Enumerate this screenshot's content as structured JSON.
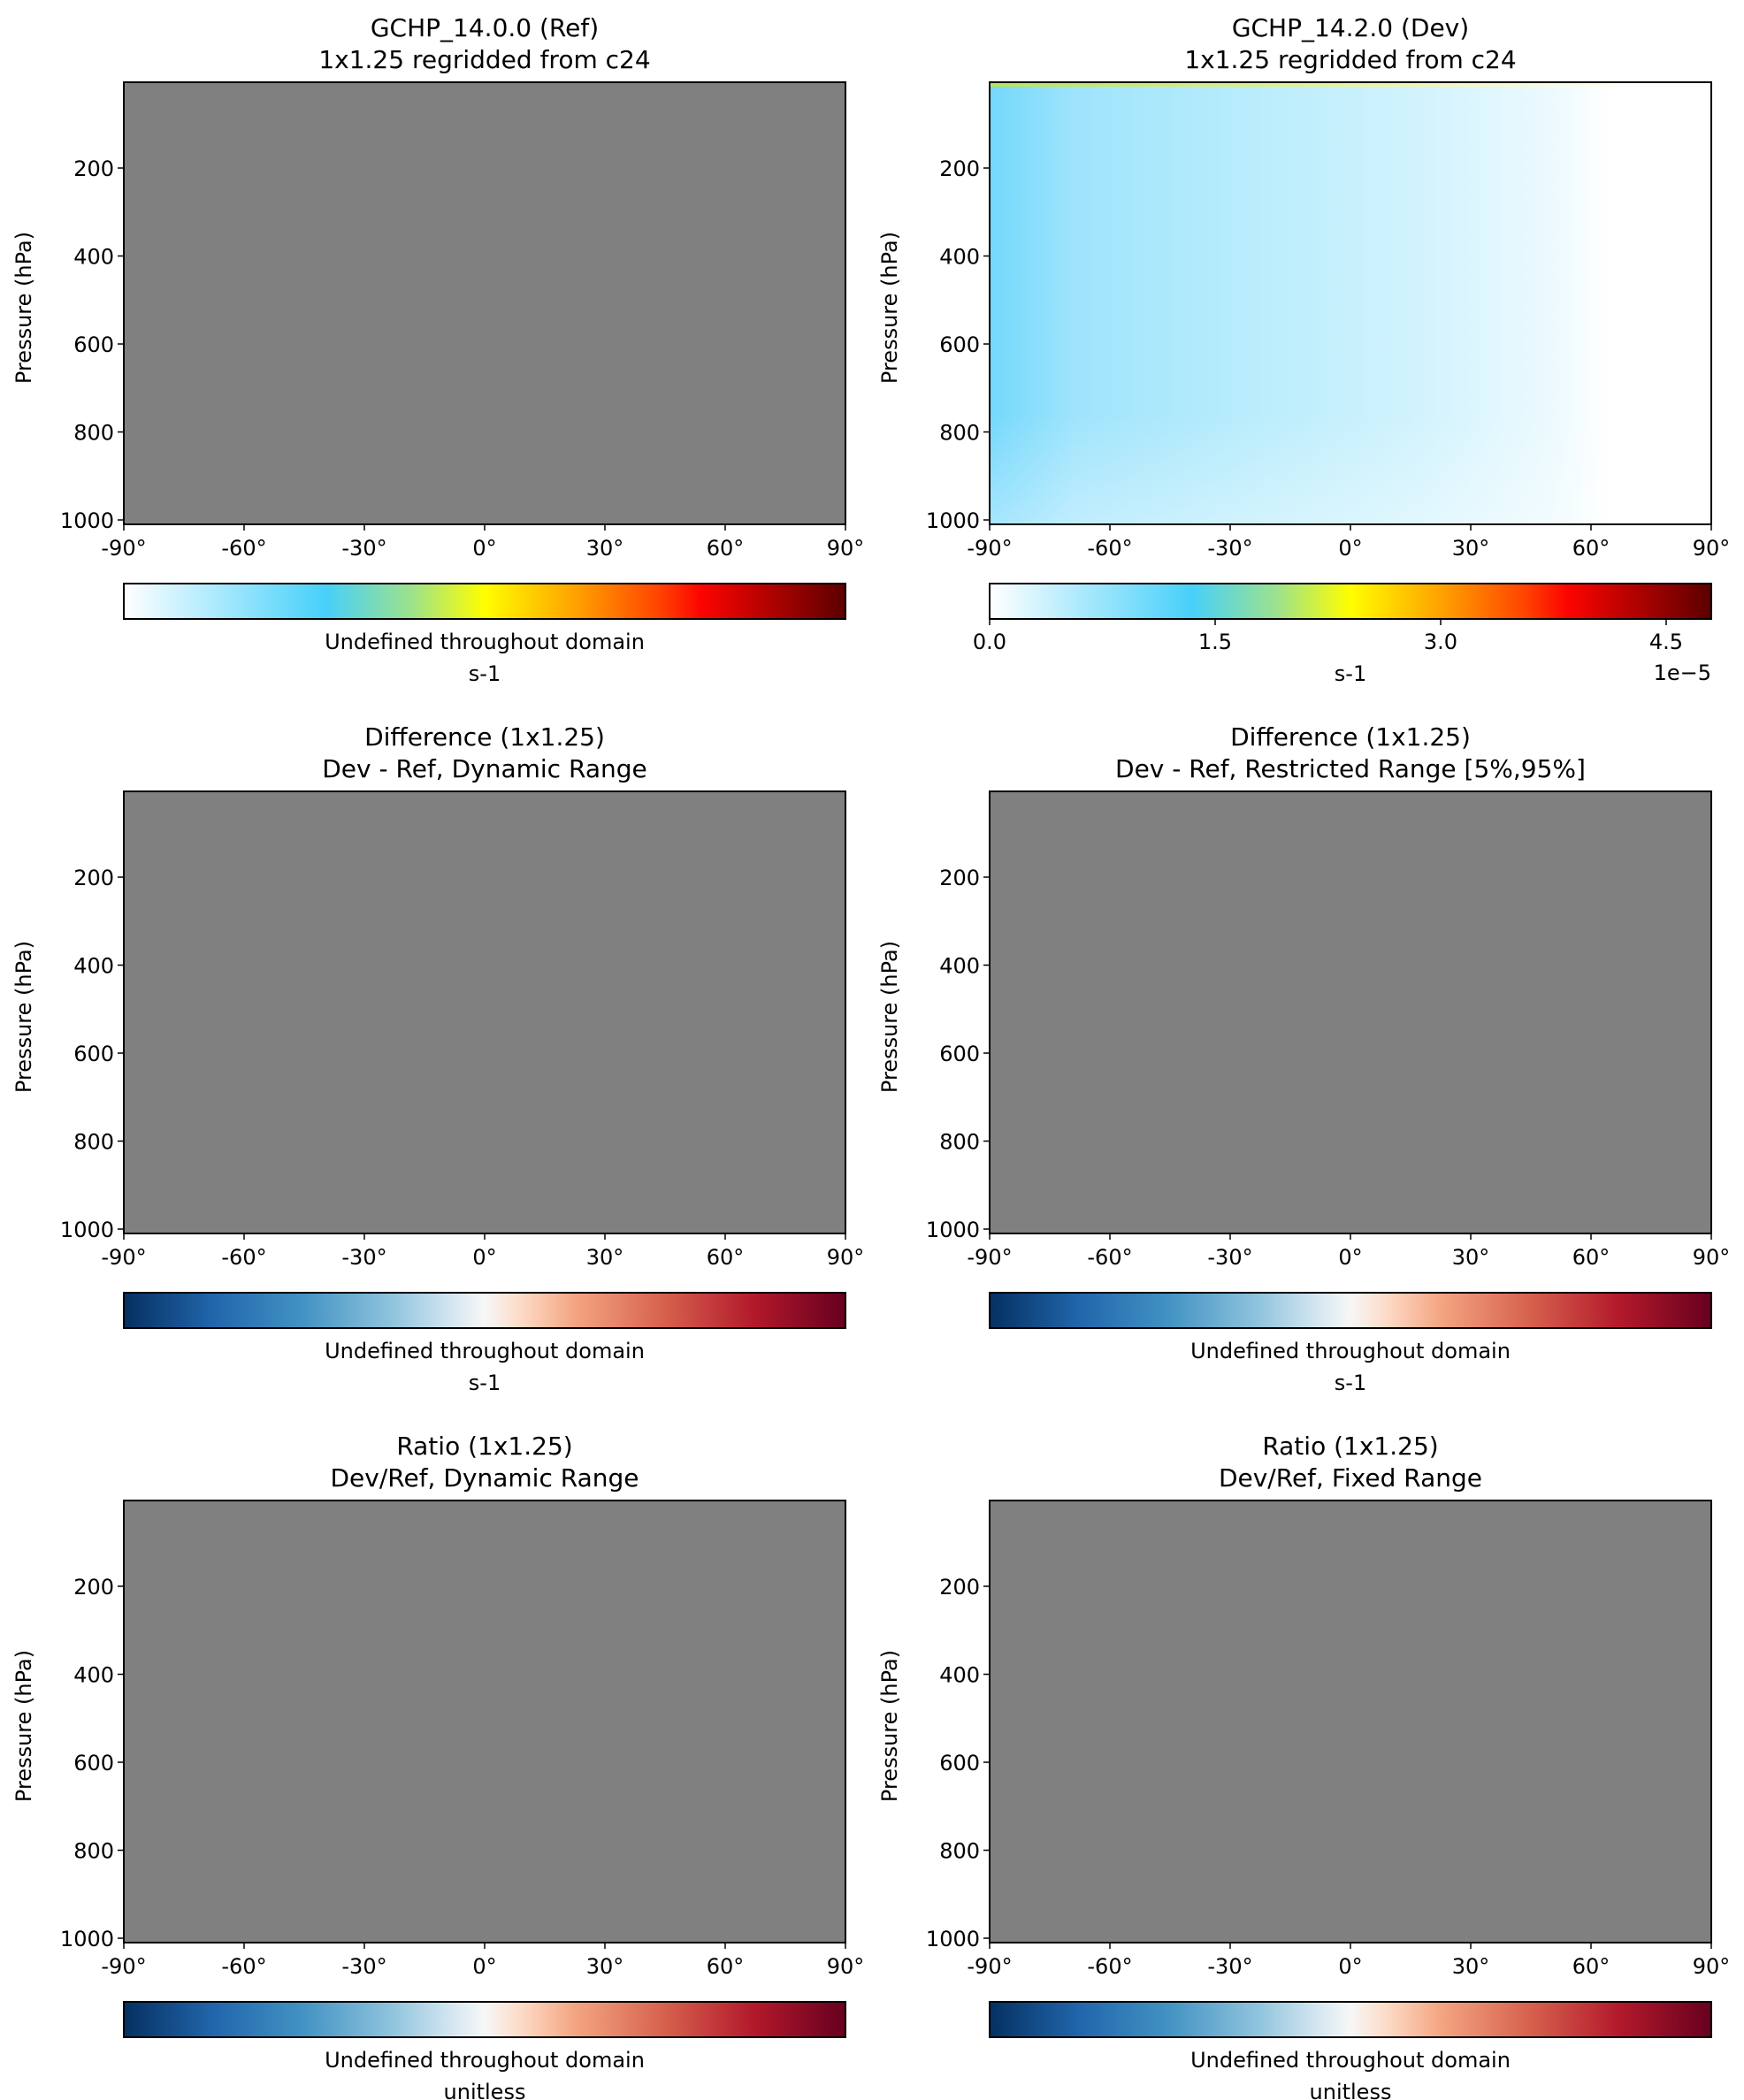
{
  "chart_data": [
    {
      "type": "heatmap",
      "title": "GCHP_14.0.0 (Ref)",
      "subtitle": "1x1.25 regridded from c24",
      "ylabel": "Pressure (hPa)",
      "x_ticks": [
        "-90°",
        "-60°",
        "-30°",
        "0°",
        "30°",
        "60°",
        "90°"
      ],
      "y_ticks": [
        "200",
        "400",
        "600",
        "800",
        "1000"
      ],
      "xlim": [
        -90,
        90
      ],
      "ylim": [
        1000,
        0
      ],
      "field": "undefined",
      "fill_color": "#808080",
      "colormap": "WhGrYlRd",
      "colorbar": {
        "label": "Undefined throughout domain",
        "units": "s-1",
        "ticks": [],
        "offset": ""
      }
    },
    {
      "type": "heatmap",
      "title": "GCHP_14.2.0 (Dev)",
      "subtitle": "1x1.25 regridded from c24",
      "ylabel": "Pressure (hPa)",
      "x_ticks": [
        "-90°",
        "-60°",
        "-30°",
        "0°",
        "30°",
        "60°",
        "90°"
      ],
      "y_ticks": [
        "200",
        "400",
        "600",
        "800",
        "1000"
      ],
      "xlim": [
        -90,
        90
      ],
      "ylim": [
        1000,
        0
      ],
      "field": "gradient_decreasing_northward",
      "value_range": [
        0.0,
        4.8
      ],
      "colormap": "WhGrYlRd",
      "colorbar": {
        "label": "",
        "units": "s-1",
        "ticks": [
          "0.0",
          "1.5",
          "3.0",
          "4.5"
        ],
        "tick_values": [
          0.0,
          1.5,
          3.0,
          4.5
        ],
        "vmin": 0.0,
        "vmax": 4.8,
        "offset": "1e−5"
      }
    },
    {
      "type": "heatmap",
      "title": "Difference (1x1.25)",
      "subtitle": "Dev - Ref, Dynamic Range",
      "ylabel": "Pressure (hPa)",
      "x_ticks": [
        "-90°",
        "-60°",
        "-30°",
        "0°",
        "30°",
        "60°",
        "90°"
      ],
      "y_ticks": [
        "200",
        "400",
        "600",
        "800",
        "1000"
      ],
      "xlim": [
        -90,
        90
      ],
      "ylim": [
        1000,
        0
      ],
      "field": "undefined",
      "fill_color": "#808080",
      "colormap": "RdBu_r",
      "colorbar": {
        "label": "Undefined throughout domain",
        "units": "s-1",
        "ticks": [],
        "offset": ""
      }
    },
    {
      "type": "heatmap",
      "title": "Difference (1x1.25)",
      "subtitle": "Dev - Ref, Restricted Range [5%,95%]",
      "ylabel": "Pressure (hPa)",
      "x_ticks": [
        "-90°",
        "-60°",
        "-30°",
        "0°",
        "30°",
        "60°",
        "90°"
      ],
      "y_ticks": [
        "200",
        "400",
        "600",
        "800",
        "1000"
      ],
      "xlim": [
        -90,
        90
      ],
      "ylim": [
        1000,
        0
      ],
      "field": "undefined",
      "fill_color": "#808080",
      "colormap": "RdBu_r",
      "colorbar": {
        "label": "Undefined throughout domain",
        "units": "s-1",
        "ticks": [],
        "offset": ""
      }
    },
    {
      "type": "heatmap",
      "title": "Ratio (1x1.25)",
      "subtitle": "Dev/Ref, Dynamic Range",
      "ylabel": "Pressure (hPa)",
      "x_ticks": [
        "-90°",
        "-60°",
        "-30°",
        "0°",
        "30°",
        "60°",
        "90°"
      ],
      "y_ticks": [
        "200",
        "400",
        "600",
        "800",
        "1000"
      ],
      "xlim": [
        -90,
        90
      ],
      "ylim": [
        1000,
        0
      ],
      "field": "undefined",
      "fill_color": "#808080",
      "colormap": "RdBu_r",
      "colorbar": {
        "label": "Undefined throughout domain",
        "units": "unitless",
        "ticks": [],
        "offset": ""
      }
    },
    {
      "type": "heatmap",
      "title": "Ratio (1x1.25)",
      "subtitle": "Dev/Ref, Fixed Range",
      "ylabel": "Pressure (hPa)",
      "x_ticks": [
        "-90°",
        "-60°",
        "-30°",
        "0°",
        "30°",
        "60°",
        "90°"
      ],
      "y_ticks": [
        "200",
        "400",
        "600",
        "800",
        "1000"
      ],
      "xlim": [
        -90,
        90
      ],
      "ylim": [
        1000,
        0
      ],
      "field": "undefined",
      "fill_color": "#808080",
      "colormap": "RdBu_r",
      "colorbar": {
        "label": "Undefined throughout domain",
        "units": "unitless",
        "ticks": [],
        "offset": ""
      }
    }
  ]
}
